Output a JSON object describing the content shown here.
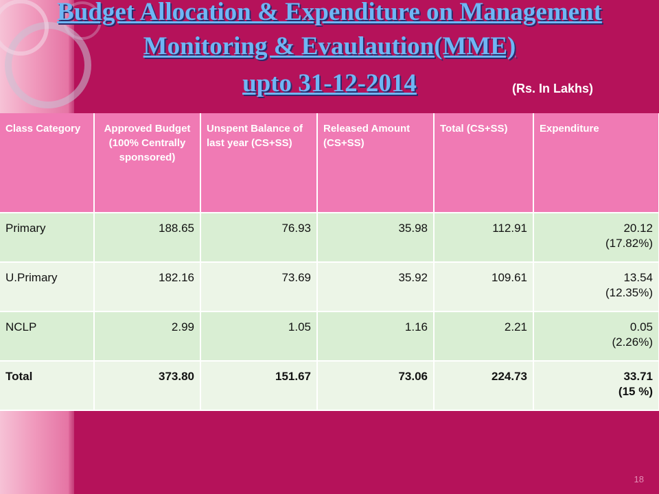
{
  "title": {
    "line1": "Budget Allocation & Expenditure on Management",
    "line2": "Monitoring & Evaulaution(MME)",
    "line3": "upto 31-12-2014"
  },
  "units": "(Rs. In Lakhs)",
  "table": {
    "headers": [
      "Class Category",
      "Approved Budget (100% Centrally sponsored)",
      "Unspent Balance of last year (CS+SS)",
      "Released Amount (CS+SS)",
      "Total (CS+SS)",
      "Expenditure"
    ],
    "rows": [
      {
        "category": "Primary",
        "approved": "188.65",
        "unspent": "76.93",
        "released": "35.98",
        "total": "112.91",
        "expenditure": "20.12",
        "pct": "(17.82%)"
      },
      {
        "category": "U.Primary",
        "approved": "182.16",
        "unspent": "73.69",
        "released": "35.92",
        "total": "109.61",
        "expenditure": "13.54",
        "pct": "(12.35%)"
      },
      {
        "category": "NCLP",
        "approved": "2.99",
        "unspent": "1.05",
        "released": "1.16",
        "total": "2.21",
        "expenditure": "0.05",
        "pct": "(2.26%)"
      }
    ],
    "total": {
      "category": "Total",
      "approved": "373.80",
      "unspent": "151.67",
      "released": "73.06",
      "total": "224.73",
      "expenditure": "33.71",
      "pct": "(15 %)"
    }
  },
  "page_number": "18",
  "colors": {
    "background": "#b5125a",
    "header_cell": "#f07ab4",
    "row_light_green": "#d9eed3",
    "row_pale_green": "#ecf5e7",
    "title_text": "#6fb6f4"
  }
}
